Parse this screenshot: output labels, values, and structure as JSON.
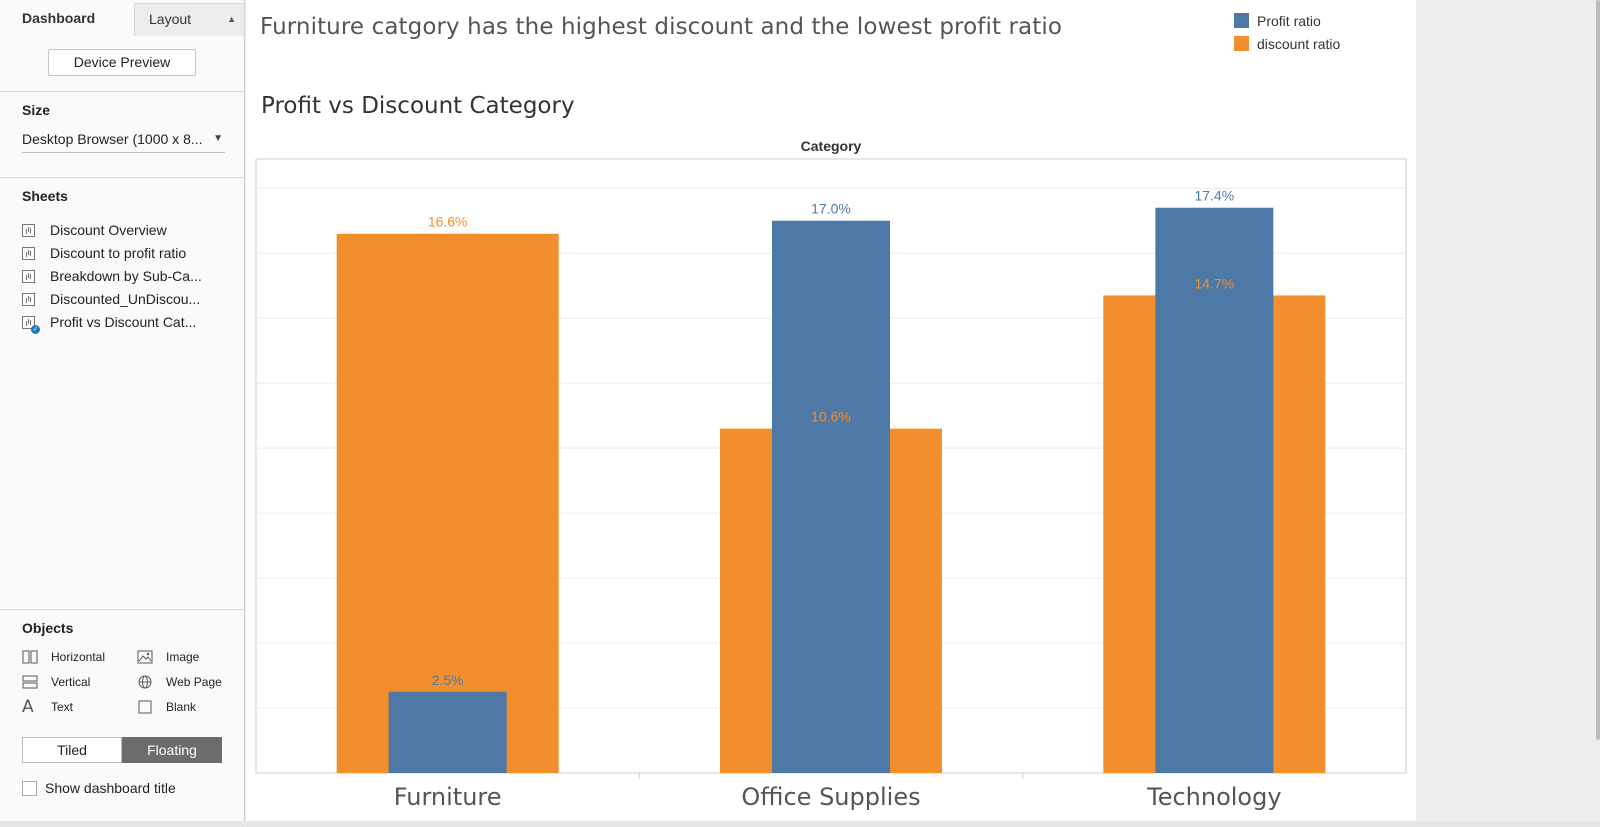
{
  "tabs": {
    "dashboard": "Dashboard",
    "layout": "Layout"
  },
  "device_preview": "Device Preview",
  "size": {
    "title": "Size",
    "value": "Desktop Browser (1000 x 8..."
  },
  "sheets": {
    "title": "Sheets",
    "items": [
      {
        "label": "Discount Overview"
      },
      {
        "label": "Discount to profit ratio"
      },
      {
        "label": "Breakdown by Sub-Ca..."
      },
      {
        "label": "Discounted_UnDiscou..."
      },
      {
        "label": "Profit vs Discount Cat..."
      }
    ]
  },
  "objects": {
    "title": "Objects",
    "items": [
      {
        "label": "Horizontal",
        "icon": "horizontal-layout-icon"
      },
      {
        "label": "Image",
        "icon": "image-icon"
      },
      {
        "label": "Vertical",
        "icon": "vertical-layout-icon"
      },
      {
        "label": "Web Page",
        "icon": "globe-icon"
      },
      {
        "label": "Text",
        "icon": "text-icon"
      },
      {
        "label": "Blank",
        "icon": "blank-icon"
      }
    ]
  },
  "layout_toggle": {
    "tiled": "Tiled",
    "floating": "Floating",
    "selected": "Floating"
  },
  "show_title": "Show dashboard title",
  "dashboard_title": "Furniture catgory has the highest discount and the lowest profit ratio",
  "legend": [
    {
      "name": "Profit ratio",
      "color": "#4e79a7"
    },
    {
      "name": "discount ratio",
      "color": "#f28e2b"
    }
  ],
  "chart_data": {
    "type": "bar",
    "title": "Profit vs Discount Category",
    "column_header": "Category",
    "categories": [
      "Furniture",
      "Office Supplies",
      "Technology"
    ],
    "series": [
      {
        "name": "discount ratio",
        "values": [
          16.6,
          10.6,
          14.7
        ],
        "labels": [
          "16.6%",
          "10.6%",
          "14.7%"
        ],
        "color": "#f28e2b"
      },
      {
        "name": "Profit ratio",
        "values": [
          2.5,
          17.0,
          17.4
        ],
        "labels": [
          "2.5%",
          "17.0%",
          "17.4%"
        ],
        "color": "#4e79a7"
      }
    ],
    "overlapped": true,
    "ylim": [
      0,
      18.9
    ],
    "gridlines": true
  }
}
